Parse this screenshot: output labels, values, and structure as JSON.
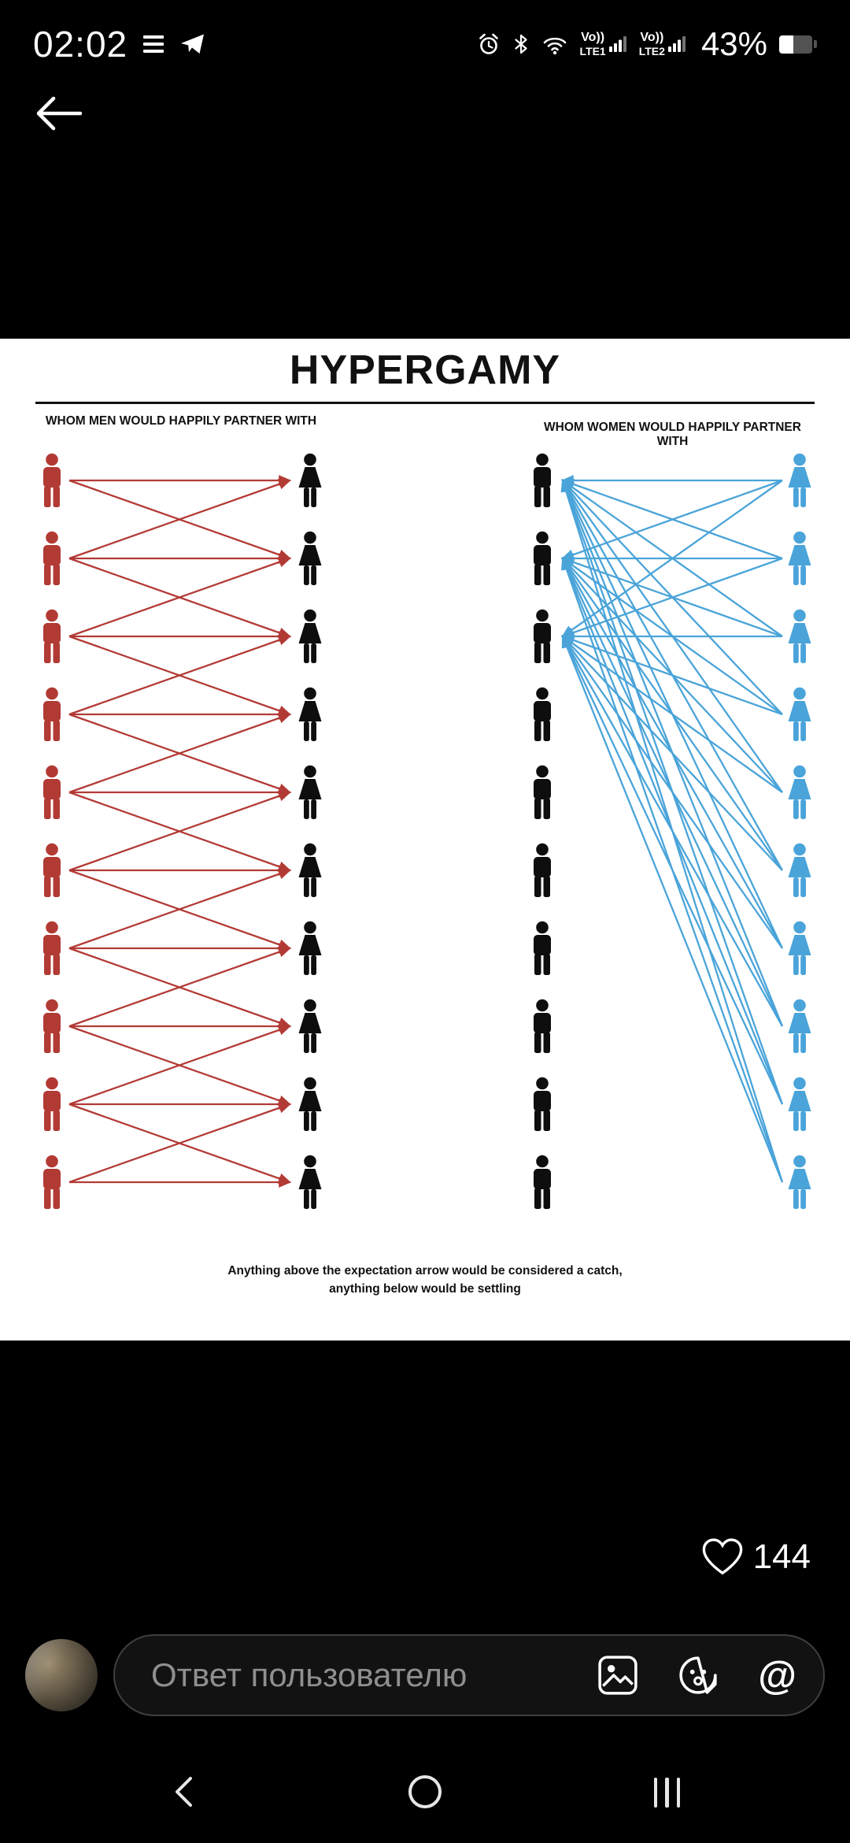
{
  "status_bar": {
    "time": "02:02",
    "battery_text": "43%",
    "battery_level": 43,
    "sim1": {
      "vo": "Vo))",
      "net": "LTE1"
    },
    "sim2": {
      "vo": "Vo))",
      "net": "LTE2"
    },
    "icons": [
      "menu-icon",
      "telegram-icon",
      "alarm-icon",
      "bluetooth-icon",
      "wifi-calling-icon",
      "signal-bars-icon",
      "signal-bars-icon",
      "battery-icon"
    ]
  },
  "header": {
    "back_icon": "back-arrow-icon"
  },
  "meme": {
    "title": "HYPERGAMY",
    "left_subtitle": "WHOM MEN WOULD HAPPILY PARTNER WITH",
    "right_subtitle": "WHOM WOMEN WOULD HAPPILY PARTNER WITH",
    "caption_line1": "Anything above the expectation arrow would be considered a catch,",
    "caption_line2": "anything below would be settling",
    "rows": 10,
    "colors": {
      "men_left": "#b23a35",
      "women_left": "#0e0e0e",
      "men_right": "#0e0e0e",
      "women_right": "#4aa4d9",
      "arrow_left": "#b23a35",
      "arrow_right": "#4aa4d9"
    },
    "left_arrows": [
      [
        0,
        0
      ],
      [
        0,
        1
      ],
      [
        1,
        0
      ],
      [
        1,
        1
      ],
      [
        1,
        2
      ],
      [
        2,
        1
      ],
      [
        2,
        2
      ],
      [
        2,
        3
      ],
      [
        3,
        2
      ],
      [
        3,
        3
      ],
      [
        3,
        4
      ],
      [
        4,
        3
      ],
      [
        4,
        4
      ],
      [
        4,
        5
      ],
      [
        5,
        4
      ],
      [
        5,
        5
      ],
      [
        5,
        6
      ],
      [
        6,
        5
      ],
      [
        6,
        6
      ],
      [
        6,
        7
      ],
      [
        7,
        6
      ],
      [
        7,
        7
      ],
      [
        7,
        8
      ],
      [
        8,
        7
      ],
      [
        8,
        8
      ],
      [
        8,
        9
      ],
      [
        9,
        8
      ],
      [
        9,
        9
      ]
    ],
    "right_arrows": [
      [
        0,
        0
      ],
      [
        0,
        1
      ],
      [
        0,
        2
      ],
      [
        1,
        0
      ],
      [
        1,
        1
      ],
      [
        1,
        2
      ],
      [
        2,
        0
      ],
      [
        2,
        1
      ],
      [
        2,
        2
      ],
      [
        3,
        0
      ],
      [
        3,
        1
      ],
      [
        3,
        2
      ],
      [
        4,
        0
      ],
      [
        4,
        1
      ],
      [
        4,
        2
      ],
      [
        5,
        0
      ],
      [
        5,
        1
      ],
      [
        5,
        2
      ],
      [
        6,
        0
      ],
      [
        6,
        1
      ],
      [
        6,
        2
      ],
      [
        7,
        0
      ],
      [
        7,
        1
      ],
      [
        7,
        2
      ],
      [
        8,
        0
      ],
      [
        8,
        1
      ],
      [
        8,
        2
      ],
      [
        9,
        0
      ],
      [
        9,
        1
      ],
      [
        9,
        2
      ]
    ]
  },
  "engagement": {
    "like_count": "144"
  },
  "comment_bar": {
    "placeholder": "Ответ пользователю",
    "mention_glyph": "@",
    "icons": [
      "gallery-icon",
      "sticker-icon",
      "mention-icon"
    ]
  },
  "nav_bar": {
    "icons": [
      "nav-back-icon",
      "nav-home-icon",
      "nav-recents-icon"
    ]
  }
}
